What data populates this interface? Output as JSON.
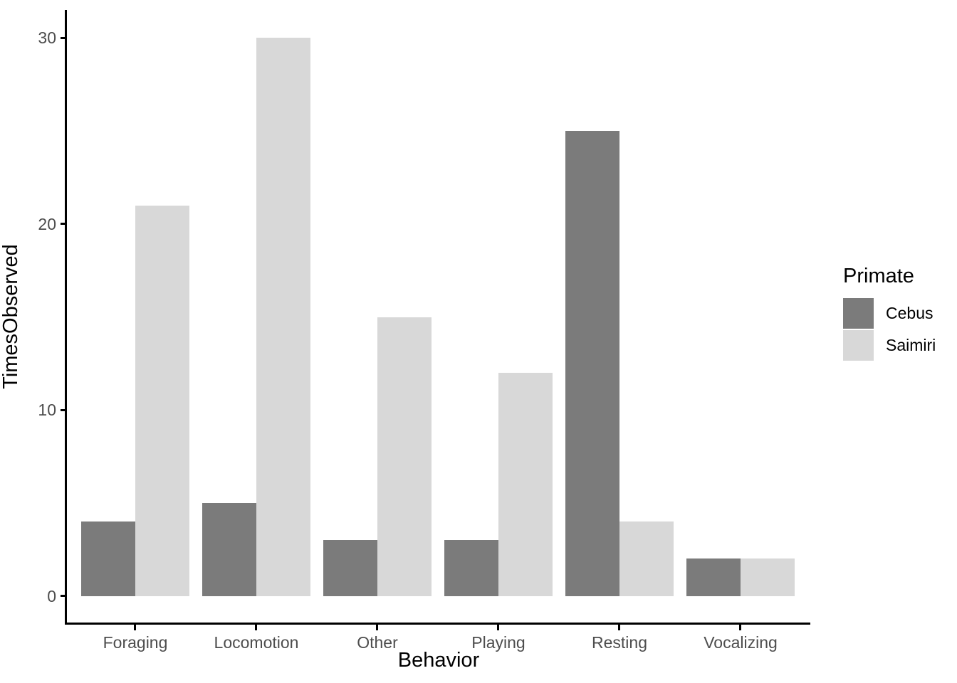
{
  "chart_data": {
    "type": "bar",
    "bar_mode": "grouped",
    "title": "",
    "xlabel": "Behavior",
    "ylabel": "TimesObserved",
    "categories": [
      "Foraging",
      "Locomotion",
      "Other",
      "Playing",
      "Resting",
      "Vocalizing"
    ],
    "series": [
      {
        "name": "Cebus",
        "color": "#7b7b7b",
        "values": [
          4,
          5,
          3,
          3,
          25,
          2
        ]
      },
      {
        "name": "Saimiri",
        "color": "#d8d8d8",
        "values": [
          21,
          30,
          15,
          12,
          4,
          2
        ]
      }
    ],
    "y_ticks": [
      0,
      10,
      20,
      30
    ],
    "ylim": [
      -1.5,
      31.5
    ],
    "grid": false,
    "legend": {
      "title": "Primate",
      "position": "right",
      "entries": [
        "Cebus",
        "Saimiri"
      ]
    },
    "colors": {
      "axis_line": "#000000",
      "tick_label": "#4d4d4d",
      "axis_title": "#000000",
      "background": "#ffffff"
    }
  }
}
